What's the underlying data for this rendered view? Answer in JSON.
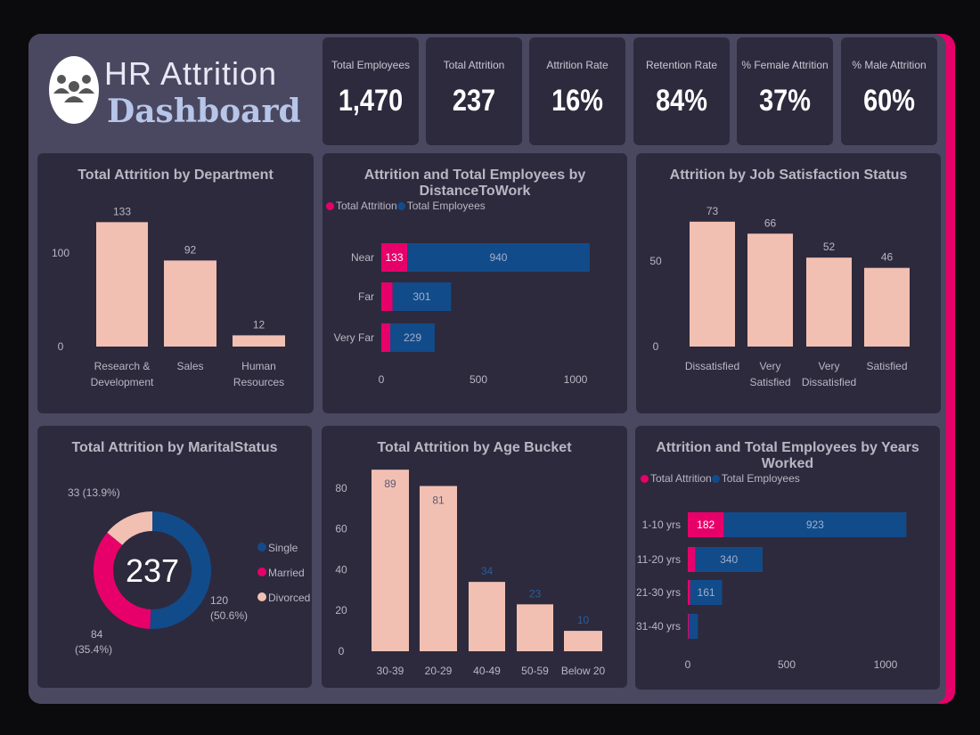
{
  "header": {
    "title_line1": "HR Attrition",
    "title_line2": "Dashboard",
    "logo_icon": "people-group-icon"
  },
  "colors": {
    "attrition": "#e8006a",
    "employees": "#124b8a",
    "bar": "#f2c0b2",
    "card": "#2d2a3d",
    "frame": "#4a4860"
  },
  "kpis": [
    {
      "label": "Total Employees",
      "value": "1,470"
    },
    {
      "label": "Total Attrition",
      "value": "237"
    },
    {
      "label": "Attrition Rate",
      "value": "16%"
    },
    {
      "label": "Retention Rate",
      "value": "84%"
    },
    {
      "label": "% Female Attrition",
      "value": "37%"
    },
    {
      "label": "% Male Attrition",
      "value": "60%"
    }
  ],
  "chart_data": [
    {
      "id": "dept",
      "type": "bar",
      "title": "Total Attrition by Department",
      "categories": [
        "Research & Development",
        "Sales",
        "Human Resources"
      ],
      "category_lines": [
        [
          "Research &",
          "Development"
        ],
        [
          "Sales"
        ],
        [
          "Human",
          "Resources"
        ]
      ],
      "values": [
        133,
        92,
        12
      ],
      "yticks": [
        0,
        100
      ]
    },
    {
      "id": "distance",
      "type": "bar",
      "orientation": "horizontal",
      "stacked": true,
      "title": "Attrition and Total Employees by DistanceToWork",
      "legend": [
        "Total Attrition",
        "Total Employees"
      ],
      "legend_position": "top-left",
      "categories": [
        "Near",
        "Far",
        "Very Far"
      ],
      "series": [
        {
          "name": "Total Attrition",
          "values": [
            133,
            58,
            46
          ]
        },
        {
          "name": "Total Employees",
          "values": [
            940,
            301,
            229
          ]
        }
      ],
      "xticks": [
        0,
        500,
        1000
      ]
    },
    {
      "id": "jobsat",
      "type": "bar",
      "title": "Attrition by Job Satisfaction Status",
      "categories": [
        "Dissatisfied",
        "Very Satisfied",
        "Very Dissatisfied",
        "Satisfied"
      ],
      "category_lines": [
        [
          "Dissatisfied"
        ],
        [
          "Very",
          "Satisfied"
        ],
        [
          "Very",
          "Dissatisfied"
        ],
        [
          "Satisfied"
        ]
      ],
      "values": [
        73,
        66,
        52,
        46
      ],
      "yticks": [
        0,
        50
      ]
    },
    {
      "id": "marital",
      "type": "pie",
      "donut": true,
      "title": "Total Attrition by MaritalStatus",
      "center_label": "237",
      "categories": [
        "Single",
        "Married",
        "Divorced"
      ],
      "values": [
        120,
        84,
        33
      ],
      "labels": [
        [
          "120",
          "(50.6%)"
        ],
        [
          "84",
          "(35.4%)"
        ],
        [
          "33 (13.9%)"
        ]
      ],
      "legend_position": "right"
    },
    {
      "id": "age",
      "type": "bar",
      "title": "Total Attrition by Age Bucket",
      "categories": [
        "30-39",
        "20-29",
        "40-49",
        "50-59",
        "Below 20"
      ],
      "values": [
        89,
        81,
        34,
        23,
        10
      ],
      "yticks": [
        0,
        20,
        40,
        60,
        80
      ]
    },
    {
      "id": "years",
      "type": "bar",
      "orientation": "horizontal",
      "stacked": true,
      "title": "Attrition and Total Employees by Years Worked",
      "legend": [
        "Total Attrition",
        "Total Employees"
      ],
      "legend_position": "top-left",
      "categories": [
        "1-10 yrs",
        "11-20 yrs",
        "21-30 yrs",
        "31-40 yrs"
      ],
      "series": [
        {
          "name": "Total Attrition",
          "values": [
            182,
            38,
            12,
            5
          ]
        },
        {
          "name": "Total Employees",
          "values": [
            923,
            340,
            161,
            46
          ]
        }
      ],
      "value_labels": [
        [
          "182",
          "923"
        ],
        [
          "",
          "340"
        ],
        [
          "",
          "161"
        ],
        [
          "",
          ""
        ]
      ],
      "xticks": [
        0,
        500,
        1000
      ]
    }
  ]
}
